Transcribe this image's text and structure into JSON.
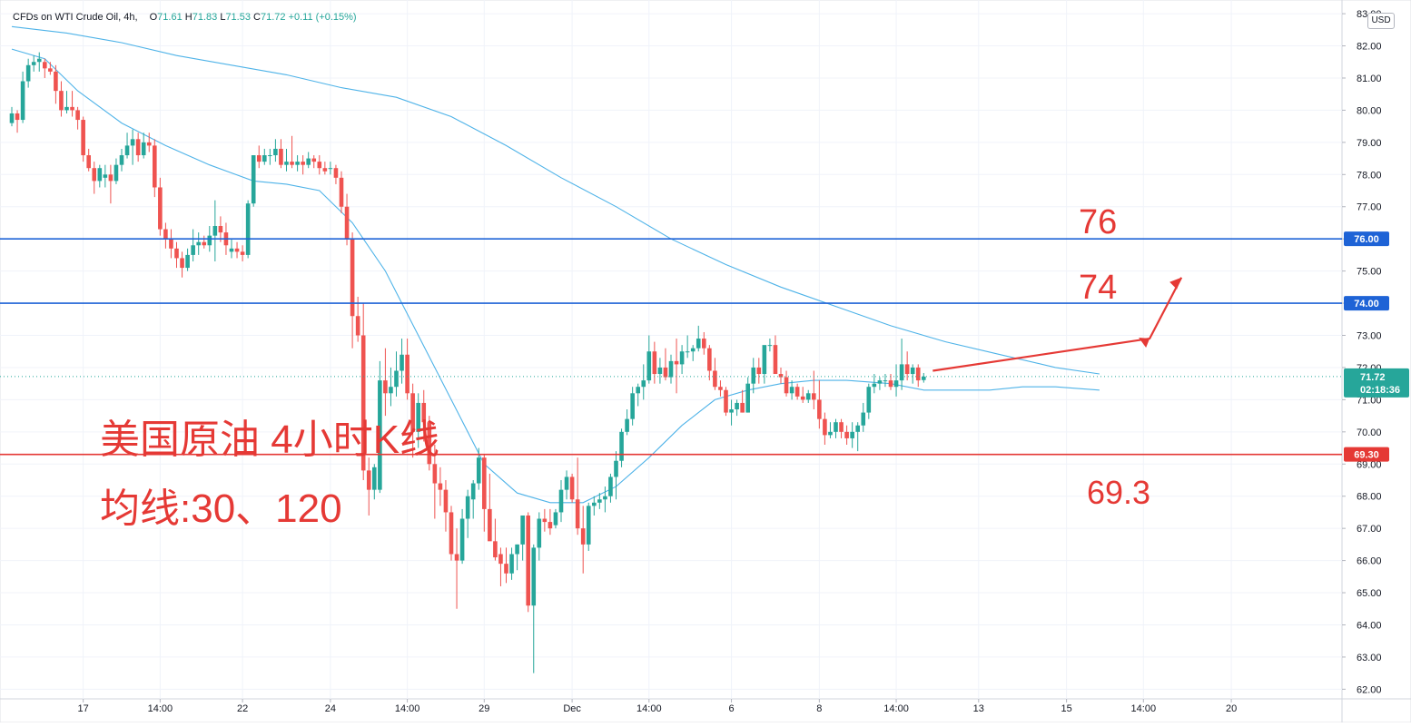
{
  "header": {
    "symbol": "CFDs on WTI Crude Oil, 4h,",
    "open_label": "O",
    "open": "71.61",
    "high_label": "H",
    "high": "71.83",
    "low_label": "L",
    "low": "71.53",
    "close_label": "C",
    "close": "71.72",
    "change": "+0.11 (+0.15%)"
  },
  "currency": "USD",
  "annotations": {
    "title": "美国原油 4小时K线",
    "ma_note": "均线:30、120",
    "label_76": "76",
    "label_74": "74",
    "label_69": "69.3"
  },
  "price_tags": {
    "current_price": "71.72",
    "countdown": "02:18:36"
  },
  "colors": {
    "up": "#26a69a",
    "down": "#ef5350",
    "ma": "#4fb3e8",
    "blue_line": "#1e63d6",
    "red_line": "#e53935",
    "arrow": "#e53935"
  },
  "chart_data": {
    "type": "candlestick",
    "interval": "4h",
    "ylim": [
      61.7,
      83.2
    ],
    "y_ticks": [
      62,
      63,
      64,
      65,
      66,
      67,
      68,
      69,
      70,
      71,
      72,
      73,
      74,
      75,
      76,
      77,
      78,
      79,
      80,
      81,
      82,
      83
    ],
    "x_ticks": [
      {
        "i": 13,
        "label": "17"
      },
      {
        "i": 27,
        "label": "14:00"
      },
      {
        "i": 42,
        "label": "22"
      },
      {
        "i": 58,
        "label": "24"
      },
      {
        "i": 72,
        "label": "14:00"
      },
      {
        "i": 86,
        "label": "29"
      },
      {
        "i": 102,
        "label": "Dec"
      },
      {
        "i": 116,
        "label": "14:00"
      },
      {
        "i": 131,
        "label": "6"
      },
      {
        "i": 147,
        "label": "8"
      },
      {
        "i": 161,
        "label": "14:00"
      },
      {
        "i": 176,
        "label": "13"
      },
      {
        "i": 192,
        "label": "15"
      },
      {
        "i": 206,
        "label": "14:00"
      },
      {
        "i": 222,
        "label": "20"
      }
    ],
    "horizontal_lines": [
      {
        "price": 76.0,
        "label": "76.00",
        "color": "blue"
      },
      {
        "price": 74.0,
        "label": "74.00",
        "color": "blue"
      },
      {
        "price": 69.3,
        "label": "69.30",
        "color": "red"
      }
    ],
    "last_price": 71.72,
    "candles": [
      [
        79.6,
        80.1,
        79.5,
        79.9
      ],
      [
        79.9,
        80.0,
        79.3,
        79.7
      ],
      [
        79.7,
        81.2,
        79.6,
        80.9
      ],
      [
        80.9,
        81.6,
        80.7,
        81.4
      ],
      [
        81.4,
        81.7,
        81.2,
        81.5
      ],
      [
        81.5,
        81.8,
        81.2,
        81.6
      ],
      [
        81.5,
        81.6,
        81.0,
        81.3
      ],
      [
        81.3,
        81.5,
        81.1,
        81.2
      ],
      [
        81.2,
        81.4,
        80.2,
        80.6
      ],
      [
        80.6,
        80.9,
        79.8,
        80.0
      ],
      [
        80.0,
        80.6,
        79.9,
        80.1
      ],
      [
        80.1,
        80.6,
        79.8,
        80.0
      ],
      [
        80.0,
        80.1,
        79.4,
        79.7
      ],
      [
        79.7,
        79.8,
        78.4,
        78.6
      ],
      [
        78.6,
        78.8,
        78.1,
        78.2
      ],
      [
        78.2,
        78.4,
        77.4,
        77.8
      ],
      [
        77.8,
        78.3,
        77.6,
        78.2
      ],
      [
        77.9,
        78.3,
        77.6,
        78.0
      ],
      [
        78.0,
        78.3,
        77.1,
        77.8
      ],
      [
        77.8,
        78.5,
        77.7,
        78.3
      ],
      [
        78.3,
        78.8,
        78.1,
        78.6
      ],
      [
        78.6,
        79.3,
        78.5,
        78.9
      ],
      [
        78.9,
        79.4,
        78.3,
        79.1
      ],
      [
        79.1,
        79.3,
        78.4,
        78.6
      ],
      [
        78.6,
        79.3,
        78.5,
        79.0
      ],
      [
        79.0,
        79.3,
        78.7,
        78.9
      ],
      [
        78.9,
        79.1,
        77.3,
        77.6
      ],
      [
        77.6,
        77.9,
        76.1,
        76.3
      ],
      [
        76.3,
        76.5,
        75.7,
        76.0
      ],
      [
        76.0,
        76.3,
        75.4,
        75.7
      ],
      [
        75.7,
        75.9,
        75.1,
        75.4
      ],
      [
        75.4,
        75.6,
        74.8,
        75.1
      ],
      [
        75.1,
        75.7,
        75.0,
        75.5
      ],
      [
        75.5,
        76.3,
        75.3,
        75.8
      ],
      [
        75.8,
        76.2,
        75.5,
        75.9
      ],
      [
        75.9,
        76.1,
        75.7,
        75.8
      ],
      [
        75.8,
        76.4,
        75.6,
        76.1
      ],
      [
        76.1,
        77.2,
        75.3,
        76.4
      ],
      [
        76.4,
        76.7,
        75.9,
        76.2
      ],
      [
        76.2,
        76.5,
        75.5,
        75.8
      ],
      [
        75.6,
        76.0,
        75.4,
        75.7
      ],
      [
        75.7,
        75.9,
        75.4,
        75.6
      ],
      [
        75.6,
        75.8,
        75.3,
        75.5
      ],
      [
        75.5,
        77.2,
        75.4,
        77.1
      ],
      [
        77.1,
        78.6,
        77.0,
        78.6
      ],
      [
        78.6,
        78.9,
        78.2,
        78.4
      ],
      [
        78.4,
        78.8,
        78.3,
        78.6
      ],
      [
        78.6,
        78.8,
        78.3,
        78.6
      ],
      [
        78.6,
        79.1,
        78.4,
        78.8
      ],
      [
        78.8,
        79.1,
        78.2,
        78.3
      ],
      [
        78.3,
        78.8,
        78.1,
        78.4
      ],
      [
        78.4,
        79.2,
        78.2,
        78.3
      ],
      [
        78.3,
        78.6,
        78.1,
        78.4
      ],
      [
        78.4,
        78.6,
        78.0,
        78.3
      ],
      [
        78.3,
        78.7,
        78.2,
        78.5
      ],
      [
        78.5,
        78.6,
        78.2,
        78.4
      ],
      [
        78.4,
        78.6,
        78.0,
        78.2
      ],
      [
        78.2,
        78.4,
        78.0,
        78.1
      ],
      [
        78.2,
        78.4,
        78.0,
        78.2
      ],
      [
        78.2,
        78.3,
        77.7,
        77.9
      ],
      [
        77.9,
        78.1,
        76.8,
        77.0
      ],
      [
        77.0,
        77.4,
        75.8,
        76.0
      ],
      [
        76.0,
        76.2,
        72.6,
        73.6
      ],
      [
        73.6,
        74.2,
        72.8,
        73.0
      ],
      [
        73.0,
        74.0,
        68.5,
        68.8
      ],
      [
        68.8,
        69.2,
        67.4,
        68.2
      ],
      [
        68.2,
        69.0,
        67.9,
        68.9
      ],
      [
        68.2,
        72.2,
        68.1,
        71.6
      ],
      [
        71.6,
        72.6,
        70.5,
        71.2
      ],
      [
        71.2,
        72.0,
        70.8,
        71.4
      ],
      [
        71.4,
        72.5,
        71.1,
        71.9
      ],
      [
        71.9,
        72.9,
        71.5,
        72.4
      ],
      [
        72.4,
        72.9,
        71.0,
        71.2
      ],
      [
        71.2,
        71.5,
        69.2,
        70.0
      ],
      [
        70.0,
        71.2,
        69.5,
        70.9
      ],
      [
        70.9,
        71.3,
        69.7,
        70.3
      ],
      [
        70.3,
        70.5,
        68.8,
        69.0
      ],
      [
        69.0,
        69.6,
        67.3,
        68.4
      ],
      [
        68.4,
        68.9,
        67.7,
        68.2
      ],
      [
        68.2,
        68.5,
        66.9,
        67.5
      ],
      [
        67.5,
        67.7,
        66.0,
        66.2
      ],
      [
        66.2,
        67.0,
        64.5,
        66.0
      ],
      [
        66.0,
        67.6,
        65.9,
        67.3
      ],
      [
        67.3,
        68.2,
        66.7,
        68.0
      ],
      [
        67.9,
        68.5,
        67.3,
        68.4
      ],
      [
        68.4,
        69.5,
        68.2,
        69.2
      ],
      [
        69.2,
        69.3,
        66.9,
        67.6
      ],
      [
        67.6,
        68.7,
        66.8,
        66.6
      ],
      [
        66.6,
        67.3,
        66.0,
        66.1
      ],
      [
        66.2,
        66.4,
        65.2,
        65.9
      ],
      [
        65.9,
        66.4,
        65.3,
        65.6
      ],
      [
        65.6,
        66.4,
        65.4,
        66.2
      ],
      [
        66.2,
        66.5,
        65.7,
        66.5
      ],
      [
        66.5,
        67.2,
        66.0,
        67.4
      ],
      [
        67.4,
        67.5,
        64.4,
        64.6
      ],
      [
        64.6,
        66.5,
        62.5,
        66.4
      ],
      [
        66.4,
        67.5,
        66.0,
        67.3
      ],
      [
        67.3,
        67.6,
        66.9,
        67.2
      ],
      [
        67.2,
        67.6,
        66.8,
        67.0
      ],
      [
        67.1,
        67.6,
        67.0,
        67.5
      ],
      [
        67.5,
        68.5,
        67.2,
        68.2
      ],
      [
        68.2,
        68.8,
        67.9,
        68.6
      ],
      [
        68.6,
        68.7,
        67.8,
        67.9
      ],
      [
        67.9,
        69.2,
        66.8,
        67.0
      ],
      [
        67.0,
        67.7,
        65.6,
        66.5
      ],
      [
        66.5,
        67.8,
        66.3,
        67.7
      ],
      [
        67.7,
        68.0,
        67.4,
        67.8
      ],
      [
        67.8,
        68.1,
        67.6,
        67.9
      ],
      [
        67.9,
        68.3,
        67.5,
        68.0
      ],
      [
        68.0,
        68.7,
        67.8,
        68.6
      ],
      [
        68.6,
        69.4,
        67.9,
        69.1
      ],
      [
        69.1,
        70.1,
        68.9,
        70.0
      ],
      [
        70.0,
        70.7,
        69.9,
        70.4
      ],
      [
        70.4,
        71.4,
        70.2,
        71.2
      ],
      [
        71.2,
        71.5,
        70.8,
        71.4
      ],
      [
        71.4,
        72.1,
        71.0,
        71.6
      ],
      [
        71.6,
        73.0,
        71.5,
        72.5
      ],
      [
        72.5,
        72.8,
        71.5,
        71.8
      ],
      [
        71.8,
        72.3,
        71.5,
        72.0
      ],
      [
        72.0,
        72.6,
        71.6,
        71.7
      ],
      [
        71.7,
        72.4,
        71.5,
        72.2
      ],
      [
        72.2,
        72.9,
        71.2,
        72.1
      ],
      [
        72.1,
        72.7,
        71.8,
        72.5
      ],
      [
        72.5,
        73.0,
        72.3,
        72.5
      ],
      [
        72.5,
        72.7,
        72.2,
        72.6
      ],
      [
        72.6,
        73.3,
        72.5,
        72.9
      ],
      [
        72.9,
        73.1,
        72.4,
        72.6
      ],
      [
        72.6,
        72.7,
        71.6,
        71.9
      ],
      [
        71.9,
        72.3,
        71.3,
        71.4
      ],
      [
        71.4,
        71.6,
        71.1,
        71.3
      ],
      [
        71.3,
        71.4,
        70.5,
        70.6
      ],
      [
        70.6,
        71.0,
        70.2,
        70.7
      ],
      [
        70.7,
        71.0,
        70.5,
        70.9
      ],
      [
        70.9,
        71.3,
        70.6,
        70.6
      ],
      [
        70.6,
        71.7,
        70.6,
        71.5
      ],
      [
        71.5,
        72.3,
        71.2,
        72.0
      ],
      [
        72.0,
        72.3,
        71.5,
        71.8
      ],
      [
        71.8,
        72.6,
        71.5,
        72.7
      ],
      [
        72.7,
        72.9,
        72.5,
        72.7
      ],
      [
        72.7,
        73.0,
        71.9,
        71.8
      ],
      [
        71.8,
        72.0,
        71.5,
        71.7
      ],
      [
        71.7,
        71.9,
        71.1,
        71.2
      ],
      [
        71.2,
        71.6,
        71.0,
        71.4
      ],
      [
        71.4,
        71.5,
        71.0,
        71.1
      ],
      [
        71.1,
        71.4,
        70.9,
        71.0
      ],
      [
        71.0,
        71.3,
        70.9,
        71.2
      ],
      [
        71.2,
        71.9,
        70.7,
        71.0
      ],
      [
        71.0,
        71.6,
        70.1,
        70.4
      ],
      [
        70.4,
        70.6,
        69.6,
        69.9
      ],
      [
        69.9,
        70.3,
        69.8,
        70.0
      ],
      [
        70.0,
        70.4,
        69.8,
        70.3
      ],
      [
        70.3,
        70.4,
        69.8,
        70.0
      ],
      [
        70.0,
        70.2,
        69.6,
        69.8
      ],
      [
        69.8,
        70.3,
        69.5,
        70.0
      ],
      [
        70.0,
        70.3,
        69.4,
        70.2
      ],
      [
        70.2,
        70.9,
        70.0,
        70.6
      ],
      [
        70.6,
        71.5,
        70.4,
        71.4
      ],
      [
        71.4,
        71.8,
        71.2,
        71.5
      ],
      [
        71.5,
        71.7,
        71.3,
        71.6
      ],
      [
        71.6,
        71.8,
        71.4,
        71.6
      ],
      [
        71.6,
        71.8,
        71.3,
        71.4
      ],
      [
        71.4,
        72.1,
        71.1,
        71.6
      ],
      [
        71.6,
        72.9,
        71.3,
        72.1
      ],
      [
        72.1,
        72.5,
        71.6,
        71.8
      ],
      [
        71.8,
        72.1,
        71.5,
        72.0
      ],
      [
        72.0,
        72.1,
        71.4,
        71.6
      ],
      [
        71.61,
        71.83,
        71.53,
        71.72
      ]
    ],
    "ma30": [
      [
        0,
        81.9
      ],
      [
        6,
        81.6
      ],
      [
        12,
        80.6
      ],
      [
        20,
        79.6
      ],
      [
        28,
        78.9
      ],
      [
        36,
        78.3
      ],
      [
        44,
        77.8
      ],
      [
        50,
        77.7
      ],
      [
        56,
        77.5
      ],
      [
        62,
        76.5
      ],
      [
        68,
        75.0
      ],
      [
        74,
        73.0
      ],
      [
        80,
        71.0
      ],
      [
        86,
        69.0
      ],
      [
        92,
        68.1
      ],
      [
        98,
        67.8
      ],
      [
        104,
        67.8
      ],
      [
        110,
        68.3
      ],
      [
        116,
        69.2
      ],
      [
        122,
        70.2
      ],
      [
        128,
        71.0
      ],
      [
        134,
        71.3
      ],
      [
        140,
        71.5
      ],
      [
        146,
        71.6
      ],
      [
        152,
        71.6
      ],
      [
        160,
        71.5
      ],
      [
        166,
        71.3
      ],
      [
        172,
        71.3
      ],
      [
        178,
        71.3
      ],
      [
        184,
        71.4
      ],
      [
        190,
        71.4
      ],
      [
        198,
        71.3
      ]
    ],
    "ma120": [
      [
        0,
        82.6
      ],
      [
        10,
        82.4
      ],
      [
        20,
        82.1
      ],
      [
        30,
        81.7
      ],
      [
        40,
        81.4
      ],
      [
        50,
        81.1
      ],
      [
        60,
        80.7
      ],
      [
        70,
        80.4
      ],
      [
        80,
        79.8
      ],
      [
        90,
        78.9
      ],
      [
        100,
        77.9
      ],
      [
        110,
        77.0
      ],
      [
        120,
        76.0
      ],
      [
        130,
        75.2
      ],
      [
        140,
        74.5
      ],
      [
        150,
        73.9
      ],
      [
        160,
        73.3
      ],
      [
        170,
        72.8
      ],
      [
        180,
        72.4
      ],
      [
        190,
        72.0
      ],
      [
        198,
        71.8
      ]
    ]
  }
}
